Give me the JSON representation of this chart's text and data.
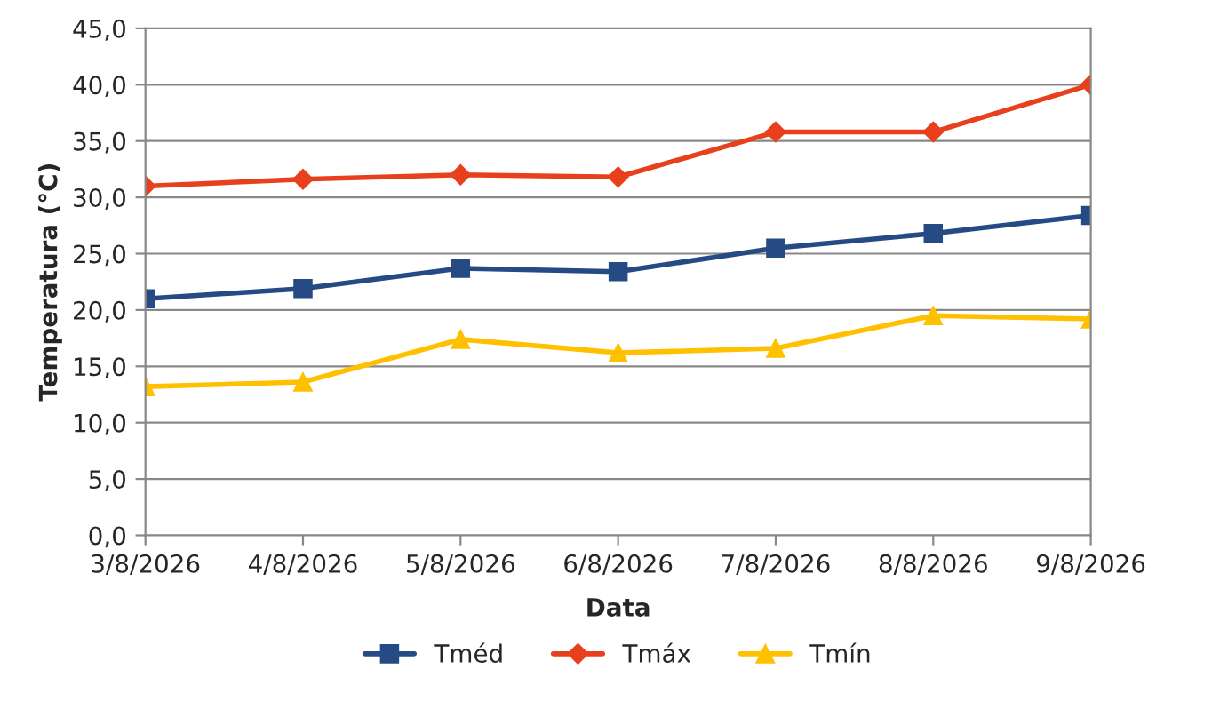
{
  "chart_data": {
    "type": "line",
    "xlabel": "Data",
    "ylabel": "Temperatura (°C)",
    "categories": [
      "3/8/2026",
      "4/8/2026",
      "5/8/2026",
      "6/8/2026",
      "7/8/2026",
      "8/8/2026",
      "9/8/2026"
    ],
    "series": [
      {
        "name": "Tméd",
        "color": "#254a84",
        "marker": "square",
        "values": [
          21.0,
          21.9,
          23.7,
          23.4,
          25.5,
          26.8,
          28.4
        ]
      },
      {
        "name": "Tmáx",
        "color": "#e8401c",
        "marker": "diamond",
        "values": [
          31.0,
          31.6,
          32.0,
          31.8,
          35.8,
          35.8,
          40.0
        ]
      },
      {
        "name": "Tmín",
        "color": "#ffc000",
        "marker": "triangle",
        "values": [
          13.2,
          13.6,
          17.4,
          16.2,
          16.6,
          19.5,
          19.2
        ]
      }
    ],
    "ylim": [
      0,
      45
    ],
    "yticks": [
      {
        "value": 0,
        "label": "0,0"
      },
      {
        "value": 5,
        "label": "5,0"
      },
      {
        "value": 10,
        "label": "10,0"
      },
      {
        "value": 15,
        "label": "15,0"
      },
      {
        "value": 20,
        "label": "20,0"
      },
      {
        "value": 25,
        "label": "25,0"
      },
      {
        "value": 30,
        "label": "30,0"
      },
      {
        "value": 35,
        "label": "35,0"
      },
      {
        "value": 40,
        "label": "40,0"
      },
      {
        "value": 45,
        "label": "45,0"
      }
    ],
    "grid": "y",
    "legend": "bottom",
    "line_style": "solid"
  }
}
